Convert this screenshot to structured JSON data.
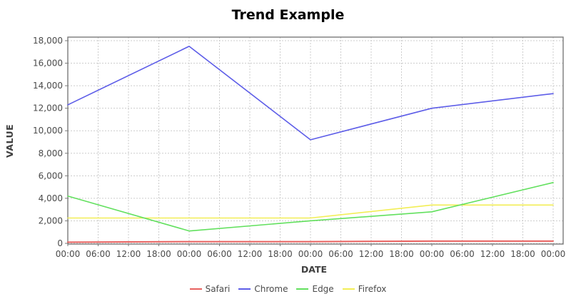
{
  "chart_data": {
    "type": "line",
    "title": "Trend Example",
    "xlabel": "DATE",
    "ylabel": "VALUE",
    "x_tick_labels": [
      "00:00",
      "06:00",
      "12:00",
      "18:00",
      "00:00",
      "06:00",
      "12:00",
      "18:00",
      "00:00",
      "06:00",
      "12:00",
      "18:00",
      "00:00",
      "06:00",
      "12:00",
      "18:00",
      "00:00"
    ],
    "y_ticks": [
      0,
      2000,
      4000,
      6000,
      8000,
      10000,
      12000,
      14000,
      16000,
      18000
    ],
    "ylim": [
      0,
      18320
    ],
    "grid": "dashed",
    "legend_position": "bottom",
    "series": [
      {
        "name": "Safari",
        "color": "#e8615f",
        "x_idx": [
          0,
          4,
          8,
          12,
          16
        ],
        "values": [
          100,
          150,
          150,
          200,
          200
        ]
      },
      {
        "name": "Chrome",
        "color": "#5d5de8",
        "x_idx": [
          0,
          4,
          8,
          12,
          16
        ],
        "values": [
          12300,
          17500,
          9200,
          12000,
          13300
        ]
      },
      {
        "name": "Edge",
        "color": "#62e05e",
        "x_idx": [
          0,
          4,
          8,
          12,
          16
        ],
        "values": [
          4200,
          1100,
          2000,
          2800,
          5400
        ]
      },
      {
        "name": "Firefox",
        "color": "#f2ee55",
        "x_idx": [
          0,
          4,
          8,
          12,
          16
        ],
        "values": [
          2250,
          2250,
          2250,
          3400,
          3400
        ]
      }
    ],
    "colors": {
      "grid": "#cccccc",
      "plot_border": "#7a7a7a",
      "tick_label": "#4a4a4a",
      "tick_mark": "#7a7a7a"
    }
  }
}
